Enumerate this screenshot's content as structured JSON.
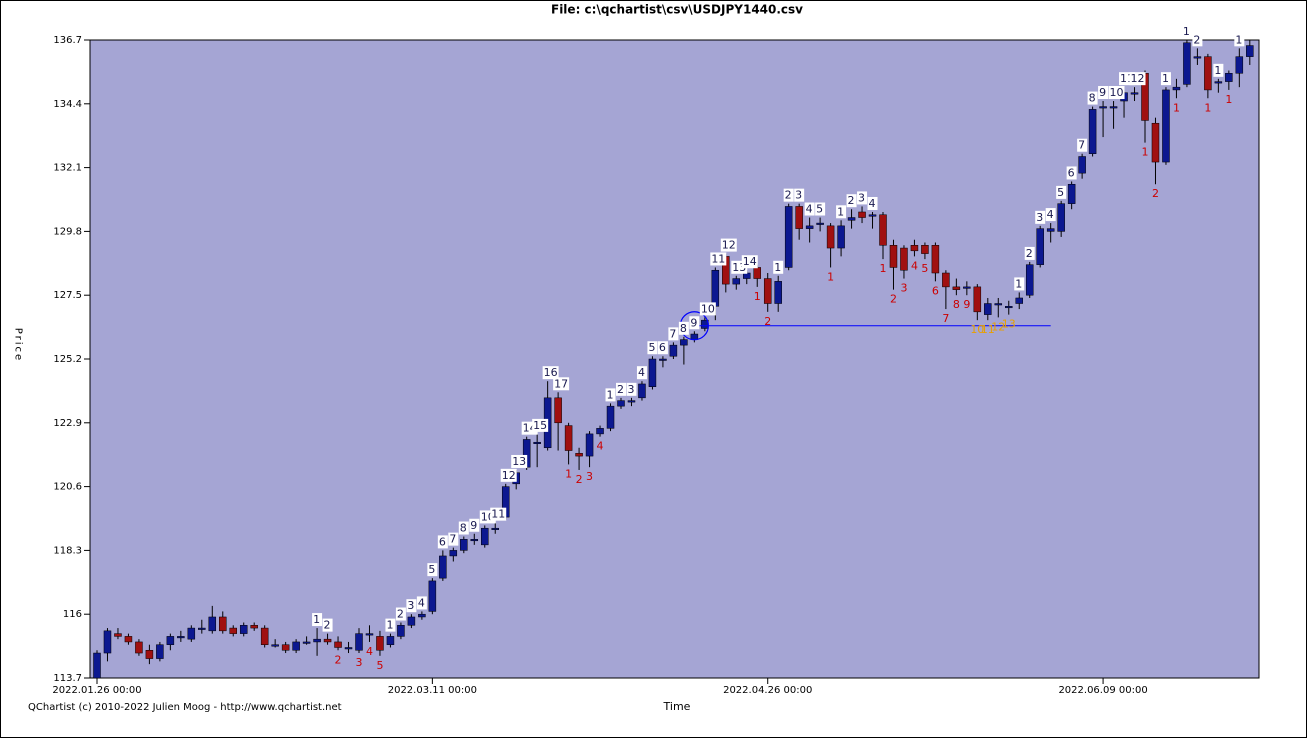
{
  "chart_data": {
    "type": "candlestick",
    "title": "File: c:\\qchartist\\csv\\USDJPY1440.csv",
    "x_label": "Time",
    "y_label": "Price",
    "footer": "QChartist (c) 2010-2022 Julien Moog - http://www.qchartist.net",
    "ylim": [
      113.7,
      136.7
    ],
    "yticks": [
      113.7,
      116,
      118.3,
      120.6,
      122.9,
      125.2,
      127.5,
      129.8,
      132.1,
      134.4,
      136.7
    ],
    "categories": [
      "2022.01.26 00:00",
      null,
      null,
      null,
      null,
      null,
      null,
      null,
      null,
      null,
      null,
      null,
      null,
      null,
      null,
      null,
      null,
      null,
      null,
      null,
      null,
      null,
      null,
      null,
      null,
      null,
      null,
      null,
      null,
      null,
      null,
      null,
      "2022.03.11 00:00",
      null,
      null,
      null,
      null,
      null,
      null,
      null,
      null,
      null,
      null,
      null,
      null,
      null,
      null,
      null,
      null,
      null,
      null,
      null,
      null,
      null,
      null,
      null,
      null,
      null,
      null,
      null,
      null,
      null,
      null,
      null,
      "2022.04.26 00:00",
      null,
      null,
      null,
      null,
      null,
      null,
      null,
      null,
      null,
      null,
      null,
      null,
      null,
      null,
      null,
      null,
      null,
      null,
      null,
      null,
      null,
      null,
      null,
      null,
      null,
      null,
      null,
      null,
      null,
      null,
      null,
      "2022.06.09 00:00",
      null,
      null,
      null,
      null,
      null,
      null,
      null,
      null,
      null,
      null,
      null,
      null,
      null,
      null
    ],
    "up_color": "#0c1890",
    "down_color": "#a01010",
    "background": "#a5a5d4",
    "candles": [
      [
        113.7,
        114.7,
        113.6,
        114.6
      ],
      [
        114.6,
        115.5,
        114.3,
        115.4
      ],
      [
        115.3,
        115.5,
        115.1,
        115.2
      ],
      [
        115.2,
        115.3,
        114.9,
        115.0
      ],
      [
        115.0,
        115.1,
        114.5,
        114.6
      ],
      [
        114.7,
        114.9,
        114.2,
        114.4
      ],
      [
        114.4,
        115.0,
        114.3,
        114.9
      ],
      [
        114.9,
        115.3,
        114.7,
        115.2
      ],
      [
        115.2,
        115.4,
        115.0,
        115.2
      ],
      [
        115.1,
        115.6,
        115.0,
        115.5
      ],
      [
        115.5,
        115.8,
        115.3,
        115.5
      ],
      [
        115.4,
        116.3,
        115.3,
        115.9
      ],
      [
        115.9,
        116.1,
        115.3,
        115.4
      ],
      [
        115.5,
        115.6,
        115.2,
        115.3
      ],
      [
        115.3,
        115.7,
        115.2,
        115.6
      ],
      [
        115.6,
        115.7,
        115.4,
        115.5
      ],
      [
        115.5,
        115.6,
        114.8,
        114.9
      ],
      [
        114.9,
        115.1,
        114.8,
        114.9
      ],
      [
        114.9,
        115.0,
        114.6,
        114.7
      ],
      [
        114.7,
        115.1,
        114.6,
        115.0
      ],
      [
        115.0,
        115.2,
        114.9,
        115.0
      ],
      [
        115.0,
        115.5,
        114.5,
        115.1
      ],
      [
        115.1,
        115.3,
        114.9,
        115.0
      ],
      [
        115.0,
        115.2,
        114.7,
        114.8
      ],
      [
        114.8,
        115.0,
        114.6,
        114.8
      ],
      [
        114.7,
        115.5,
        114.6,
        115.3
      ],
      [
        115.3,
        115.6,
        115.0,
        115.3
      ],
      [
        115.2,
        115.4,
        114.5,
        114.7
      ],
      [
        114.9,
        115.3,
        114.8,
        115.2
      ],
      [
        115.2,
        115.7,
        115.1,
        115.6
      ],
      [
        115.6,
        116.0,
        115.5,
        115.9
      ],
      [
        115.9,
        116.1,
        115.8,
        116.0
      ],
      [
        116.1,
        117.3,
        116.0,
        117.2
      ],
      [
        117.3,
        118.3,
        117.2,
        118.1
      ],
      [
        118.1,
        118.4,
        117.9,
        118.3
      ],
      [
        118.3,
        118.8,
        118.2,
        118.7
      ],
      [
        118.7,
        118.9,
        118.5,
        118.7
      ],
      [
        118.5,
        119.2,
        118.4,
        119.1
      ],
      [
        119.1,
        119.3,
        118.9,
        119.1
      ],
      [
        119.5,
        120.7,
        119.4,
        120.6
      ],
      [
        120.7,
        121.2,
        120.5,
        121.1
      ],
      [
        121.3,
        122.4,
        121.2,
        122.3
      ],
      [
        122.2,
        122.5,
        121.3,
        122.2
      ],
      [
        122.0,
        124.4,
        121.9,
        123.8
      ],
      [
        123.8,
        124.0,
        121.9,
        122.9
      ],
      [
        122.8,
        122.9,
        121.4,
        121.9
      ],
      [
        121.8,
        122.0,
        121.2,
        121.7
      ],
      [
        121.7,
        122.6,
        121.3,
        122.5
      ],
      [
        122.5,
        122.8,
        122.4,
        122.7
      ],
      [
        122.7,
        123.6,
        122.6,
        123.5
      ],
      [
        123.5,
        123.8,
        123.4,
        123.7
      ],
      [
        123.7,
        123.8,
        123.5,
        123.7
      ],
      [
        123.8,
        124.4,
        123.7,
        124.3
      ],
      [
        124.2,
        125.3,
        124.1,
        125.2
      ],
      [
        125.2,
        125.3,
        124.9,
        125.2
      ],
      [
        125.3,
        125.8,
        125.2,
        125.7
      ],
      [
        125.7,
        126.0,
        125.0,
        125.9
      ],
      [
        125.9,
        126.2,
        125.8,
        126.1
      ],
      [
        126.3,
        126.7,
        126.2,
        126.6
      ],
      [
        127.1,
        128.5,
        126.6,
        128.4
      ],
      [
        128.9,
        129.0,
        127.6,
        127.9
      ],
      [
        127.9,
        128.2,
        127.7,
        128.1
      ],
      [
        128.1,
        128.4,
        127.9,
        128.3
      ],
      [
        128.5,
        128.6,
        127.8,
        128.1
      ],
      [
        128.1,
        128.3,
        126.9,
        127.2
      ],
      [
        127.2,
        128.2,
        126.9,
        128.0
      ],
      [
        128.5,
        130.8,
        128.4,
        130.7
      ],
      [
        130.7,
        130.8,
        129.5,
        129.9
      ],
      [
        129.9,
        130.3,
        129.4,
        130.0
      ],
      [
        130.1,
        130.3,
        129.8,
        130.1
      ],
      [
        130.0,
        130.1,
        128.5,
        129.2
      ],
      [
        129.2,
        130.2,
        128.9,
        130.0
      ],
      [
        130.2,
        130.6,
        129.9,
        130.3
      ],
      [
        130.5,
        130.7,
        130.1,
        130.3
      ],
      [
        130.4,
        130.5,
        129.9,
        130.4
      ],
      [
        130.4,
        130.5,
        128.8,
        129.3
      ],
      [
        129.3,
        129.5,
        127.7,
        128.5
      ],
      [
        129.2,
        129.3,
        128.1,
        128.4
      ],
      [
        129.3,
        129.5,
        128.9,
        129.1
      ],
      [
        129.3,
        129.4,
        128.8,
        129.0
      ],
      [
        129.3,
        129.4,
        128.0,
        128.3
      ],
      [
        128.3,
        128.4,
        127.0,
        127.8
      ],
      [
        127.8,
        128.1,
        127.5,
        127.7
      ],
      [
        127.8,
        128.0,
        127.5,
        127.8
      ],
      [
        127.8,
        127.9,
        126.6,
        126.9
      ],
      [
        126.8,
        127.4,
        126.6,
        127.2
      ],
      [
        127.2,
        127.4,
        126.7,
        127.2
      ],
      [
        127.1,
        127.3,
        126.8,
        127.1
      ],
      [
        127.2,
        127.6,
        127.0,
        127.4
      ],
      [
        127.5,
        128.7,
        127.4,
        128.6
      ],
      [
        128.6,
        130.0,
        128.5,
        129.9
      ],
      [
        129.8,
        130.1,
        129.4,
        129.9
      ],
      [
        129.8,
        130.9,
        129.6,
        130.8
      ],
      [
        130.8,
        131.6,
        130.6,
        131.5
      ],
      [
        131.9,
        132.6,
        131.7,
        132.5
      ],
      [
        132.6,
        134.3,
        132.5,
        134.2
      ],
      [
        134.3,
        134.5,
        133.2,
        134.3
      ],
      [
        134.3,
        134.5,
        133.5,
        134.3
      ],
      [
        134.5,
        135.0,
        133.9,
        134.8
      ],
      [
        134.8,
        135.0,
        134.5,
        134.8
      ],
      [
        135.5,
        135.6,
        133.0,
        133.8
      ],
      [
        133.7,
        133.9,
        131.5,
        132.3
      ],
      [
        132.3,
        135.0,
        132.2,
        134.9
      ],
      [
        134.9,
        135.3,
        134.6,
        135.0
      ],
      [
        135.1,
        136.7,
        135.0,
        136.6
      ],
      [
        136.1,
        136.4,
        135.8,
        136.1
      ],
      [
        136.1,
        136.2,
        134.6,
        134.9
      ],
      [
        135.2,
        135.3,
        134.8,
        135.2
      ],
      [
        135.2,
        135.6,
        134.9,
        135.5
      ],
      [
        135.5,
        136.4,
        135.0,
        136.1
      ],
      [
        136.1,
        136.7,
        135.8,
        136.5
      ]
    ],
    "labels_above": {
      "21": "1",
      "22": "2",
      "28": "1",
      "29": "2",
      "30": "3",
      "31": "4",
      "32": "5",
      "33": "6",
      "34": "7",
      "35": "8",
      "36": "9",
      "37": "10",
      "38": "11",
      "39": "12",
      "40": "13",
      "41": "14",
      "42": "15",
      "43": "16",
      "44": "17",
      "49": "1",
      "50": "2",
      "51": "3",
      "52": "4",
      "53": "5",
      "54": "6",
      "55": "7",
      "56": "8",
      "57": "9",
      "58": "10",
      "59": "11",
      "60": "12",
      "61": "13",
      "62": "14",
      "65": "1",
      "66": "2",
      "67": "3",
      "68": "4",
      "69": "5",
      "71": "1",
      "72": "2",
      "73": "3",
      "74": "4",
      "88": "1",
      "89": "2",
      "90": "3",
      "91": "4",
      "92": "5",
      "93": "6",
      "94": "7",
      "95": "8",
      "96": "9",
      "97": "10",
      "98": "11",
      "99": "12",
      "102": "1",
      "104": "1",
      "105": "2",
      "107": "1",
      "109": "1"
    },
    "labels_below": {
      "23": "2",
      "25": "3",
      "26": "4",
      "27": "5",
      "45": "1",
      "46": "2",
      "47": "3",
      "48": "4",
      "63": "1",
      "64": "2",
      "70": "1",
      "75": "1",
      "76": "2",
      "77": "3",
      "78": "4",
      "79": "5",
      "80": "6",
      "81": "7",
      "82": "8",
      "83": "9",
      "100": "1",
      "101": "2",
      "103": "1",
      "106": "1",
      "108": "1"
    },
    "labels_countdown": {
      "84": "10",
      "85": "11",
      "86": "12",
      "87": "13"
    },
    "label_colors": {
      "above": "#1a1a50",
      "below": "#cc0000",
      "countdown": "#e8a000"
    },
    "level": {
      "value": 126.4,
      "from": 57,
      "to": 91,
      "color": "#0000ff"
    }
  }
}
